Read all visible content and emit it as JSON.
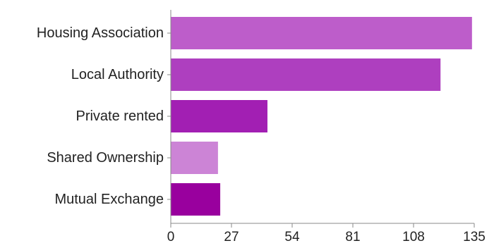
{
  "chart_data": {
    "type": "bar",
    "orientation": "horizontal",
    "title": "",
    "xlabel": "",
    "ylabel": "",
    "categories": [
      "Housing Association",
      "Local Authority",
      "Private rented",
      "Shared Ownership",
      "Mutual Exchange"
    ],
    "values": [
      134,
      120,
      43,
      21,
      22
    ],
    "colors": [
      "#bd5dca",
      "#ae3fbf",
      "#a21fb3",
      "#cc84d6",
      "#99009e"
    ],
    "xlim": [
      0,
      135
    ],
    "xticks": [
      0,
      27,
      54,
      81,
      108,
      135
    ],
    "grid": false,
    "legend": "none"
  }
}
